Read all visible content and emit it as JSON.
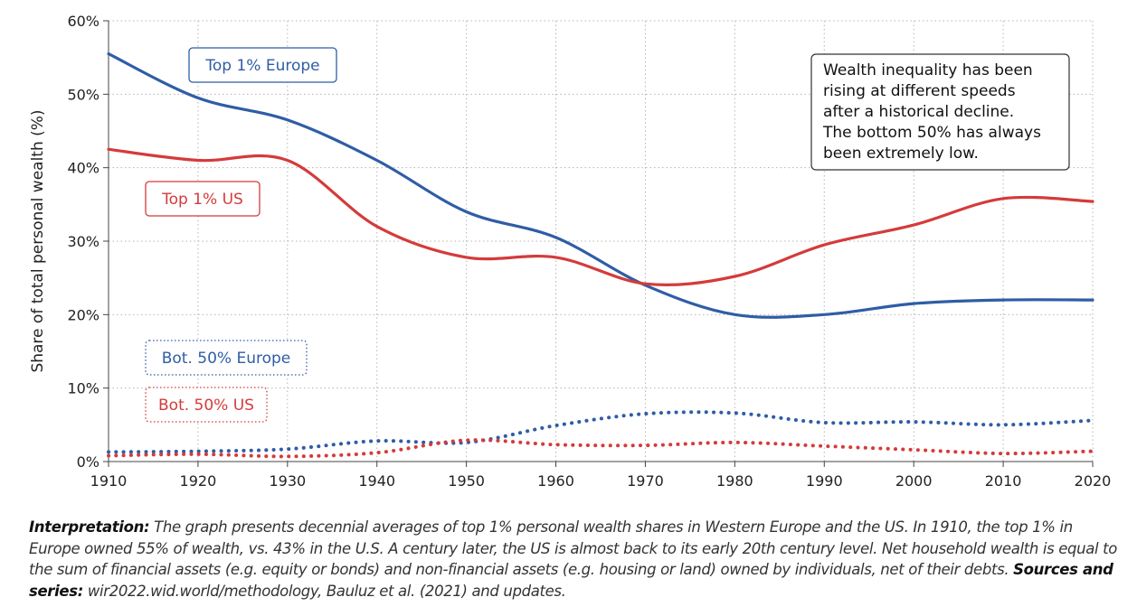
{
  "chart_data": {
    "type": "line",
    "xlabel": "",
    "ylabel": "Share of total personal wealth (%)",
    "xlim": [
      1910,
      2020
    ],
    "ylim": [
      0,
      60
    ],
    "x_ticks": [
      "1910",
      "1920",
      "1930",
      "1940",
      "1950",
      "1960",
      "1970",
      "1980",
      "1990",
      "2000",
      "2010",
      "2020"
    ],
    "y_ticks": [
      "0%",
      "10%",
      "20%",
      "30%",
      "40%",
      "50%",
      "60%"
    ],
    "grid": true,
    "colors": {
      "europe": "#2f5da6",
      "us": "#d43b3b"
    },
    "series": [
      {
        "name": "Top 1% Europe",
        "style": "solid",
        "color": "#2f5da6",
        "x": [
          1910,
          1920,
          1930,
          1940,
          1950,
          1960,
          1970,
          1980,
          1990,
          2000,
          2010,
          2020
        ],
        "values": [
          55.5,
          49.5,
          46.5,
          41,
          34,
          30.5,
          24,
          20,
          20,
          21.5,
          22,
          22
        ]
      },
      {
        "name": "Top 1% US",
        "style": "solid",
        "color": "#d43b3b",
        "x": [
          1910,
          1920,
          1930,
          1940,
          1950,
          1960,
          1970,
          1980,
          1990,
          2000,
          2010,
          2020
        ],
        "values": [
          42.5,
          41,
          41,
          32,
          27.8,
          27.8,
          24.2,
          25.2,
          29.5,
          32.2,
          35.8,
          35.4
        ]
      },
      {
        "name": "Bot. 50% Europe",
        "style": "dotted",
        "color": "#2f5da6",
        "x": [
          1910,
          1920,
          1930,
          1940,
          1950,
          1960,
          1970,
          1980,
          1990,
          2000,
          2010,
          2020
        ],
        "values": [
          1.3,
          1.4,
          1.7,
          2.8,
          2.6,
          4.9,
          6.5,
          6.6,
          5.3,
          5.4,
          5.0,
          5.6
        ]
      },
      {
        "name": "Bot. 50% US",
        "style": "dotted",
        "color": "#d43b3b",
        "x": [
          1910,
          1920,
          1930,
          1940,
          1950,
          1960,
          1970,
          1980,
          1990,
          2000,
          2010,
          2020
        ],
        "values": [
          0.8,
          1.0,
          0.7,
          1.2,
          2.9,
          2.3,
          2.2,
          2.6,
          2.1,
          1.6,
          1.1,
          1.4
        ]
      }
    ],
    "series_labels": [
      {
        "text": "Top 1% Europe",
        "color": "#2f5da6",
        "border": "solid"
      },
      {
        "text": "Top 1% US",
        "color": "#d43b3b",
        "border": "solid"
      },
      {
        "text": "Bot. 50% Europe",
        "color": "#2f5da6",
        "border": "dotted"
      },
      {
        "text": "Bot. 50% US",
        "color": "#d43b3b",
        "border": "dotted"
      }
    ],
    "annotation": {
      "lines": [
        "Wealth inequality has been",
        "rising at different speeds",
        "after a historical decline.",
        "The bottom 50% has always",
        "been extremely low."
      ]
    }
  },
  "caption": {
    "interpretation_label": "Interpretation:",
    "interpretation_text": " The graph presents decennial averages of top 1% personal wealth shares in Western Europe and the US. In 1910, the top 1% in Europe owned 55% of wealth, vs. 43% in the U.S. A century later, the US is almost back to its early 20th century level. Net household wealth is equal to the sum of financial assets (e.g. equity or bonds) and non-financial assets (e.g. housing or land) owned by individuals, net of their debts. ",
    "sources_label": "Sources and series:",
    "sources_text": " wir2022.wid.world/methodology, Bauluz et al. (2021) and updates."
  }
}
